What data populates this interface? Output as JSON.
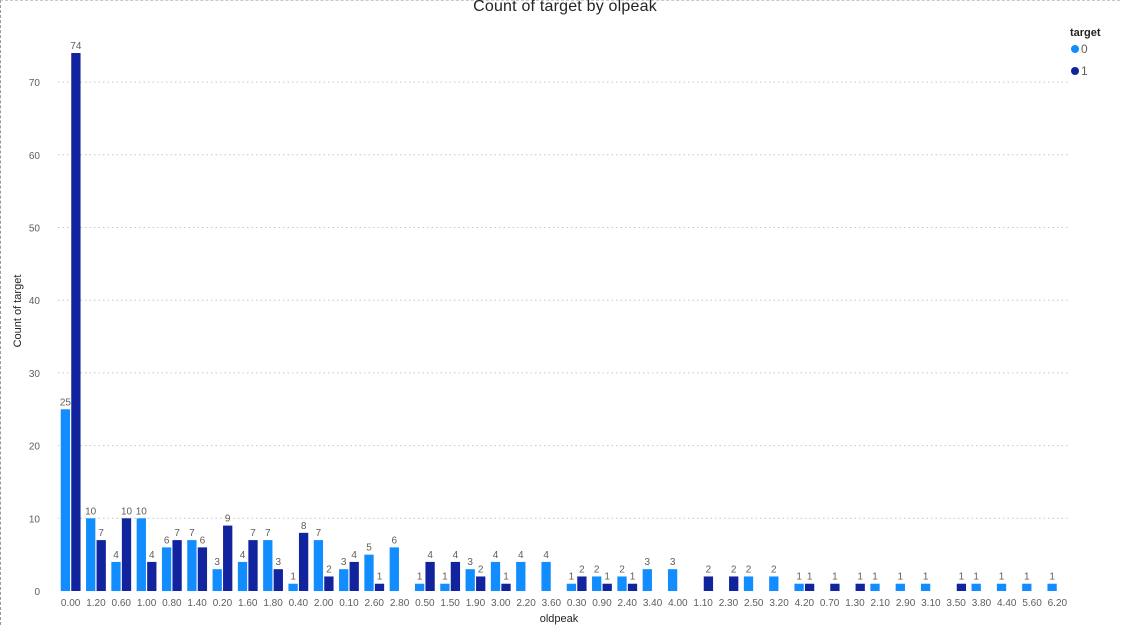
{
  "chart_data": {
    "type": "bar",
    "title": "Count of target by olpeak",
    "xlabel": "oldpeak",
    "ylabel": "Count of target",
    "ylim": [
      0,
      75
    ],
    "yticks": [
      0,
      10,
      20,
      30,
      40,
      50,
      60,
      70
    ],
    "grid": true,
    "legend": {
      "title": "target",
      "position": "top-right"
    },
    "categories": [
      "0.00",
      "1.20",
      "0.60",
      "1.00",
      "0.80",
      "1.40",
      "0.20",
      "1.60",
      "1.80",
      "0.40",
      "2.00",
      "0.10",
      "2.60",
      "2.80",
      "0.50",
      "1.50",
      "1.90",
      "3.00",
      "2.20",
      "3.60",
      "0.30",
      "0.90",
      "2.40",
      "3.40",
      "4.00",
      "1.10",
      "2.30",
      "2.50",
      "3.20",
      "4.20",
      "0.70",
      "1.30",
      "2.10",
      "2.90",
      "3.10",
      "3.50",
      "3.80",
      "4.40",
      "5.60",
      "6.20"
    ],
    "series": [
      {
        "name": "0",
        "color": "#118DFF",
        "values": [
          25,
          10,
          4,
          10,
          6,
          7,
          3,
          4,
          7,
          1,
          7,
          3,
          5,
          6,
          1,
          1,
          3,
          4,
          4,
          4,
          1,
          2,
          2,
          3,
          3,
          null,
          null,
          2,
          2,
          1,
          null,
          null,
          1,
          1,
          1,
          null,
          1,
          1,
          1,
          1
        ]
      },
      {
        "name": "1",
        "color": "#12239E",
        "values": [
          74,
          7,
          10,
          4,
          7,
          6,
          9,
          7,
          3,
          8,
          2,
          4,
          1,
          null,
          4,
          4,
          2,
          1,
          null,
          null,
          2,
          1,
          1,
          null,
          null,
          2,
          2,
          null,
          null,
          1,
          1,
          1,
          null,
          null,
          null,
          1,
          null,
          null,
          null,
          null
        ]
      }
    ]
  }
}
